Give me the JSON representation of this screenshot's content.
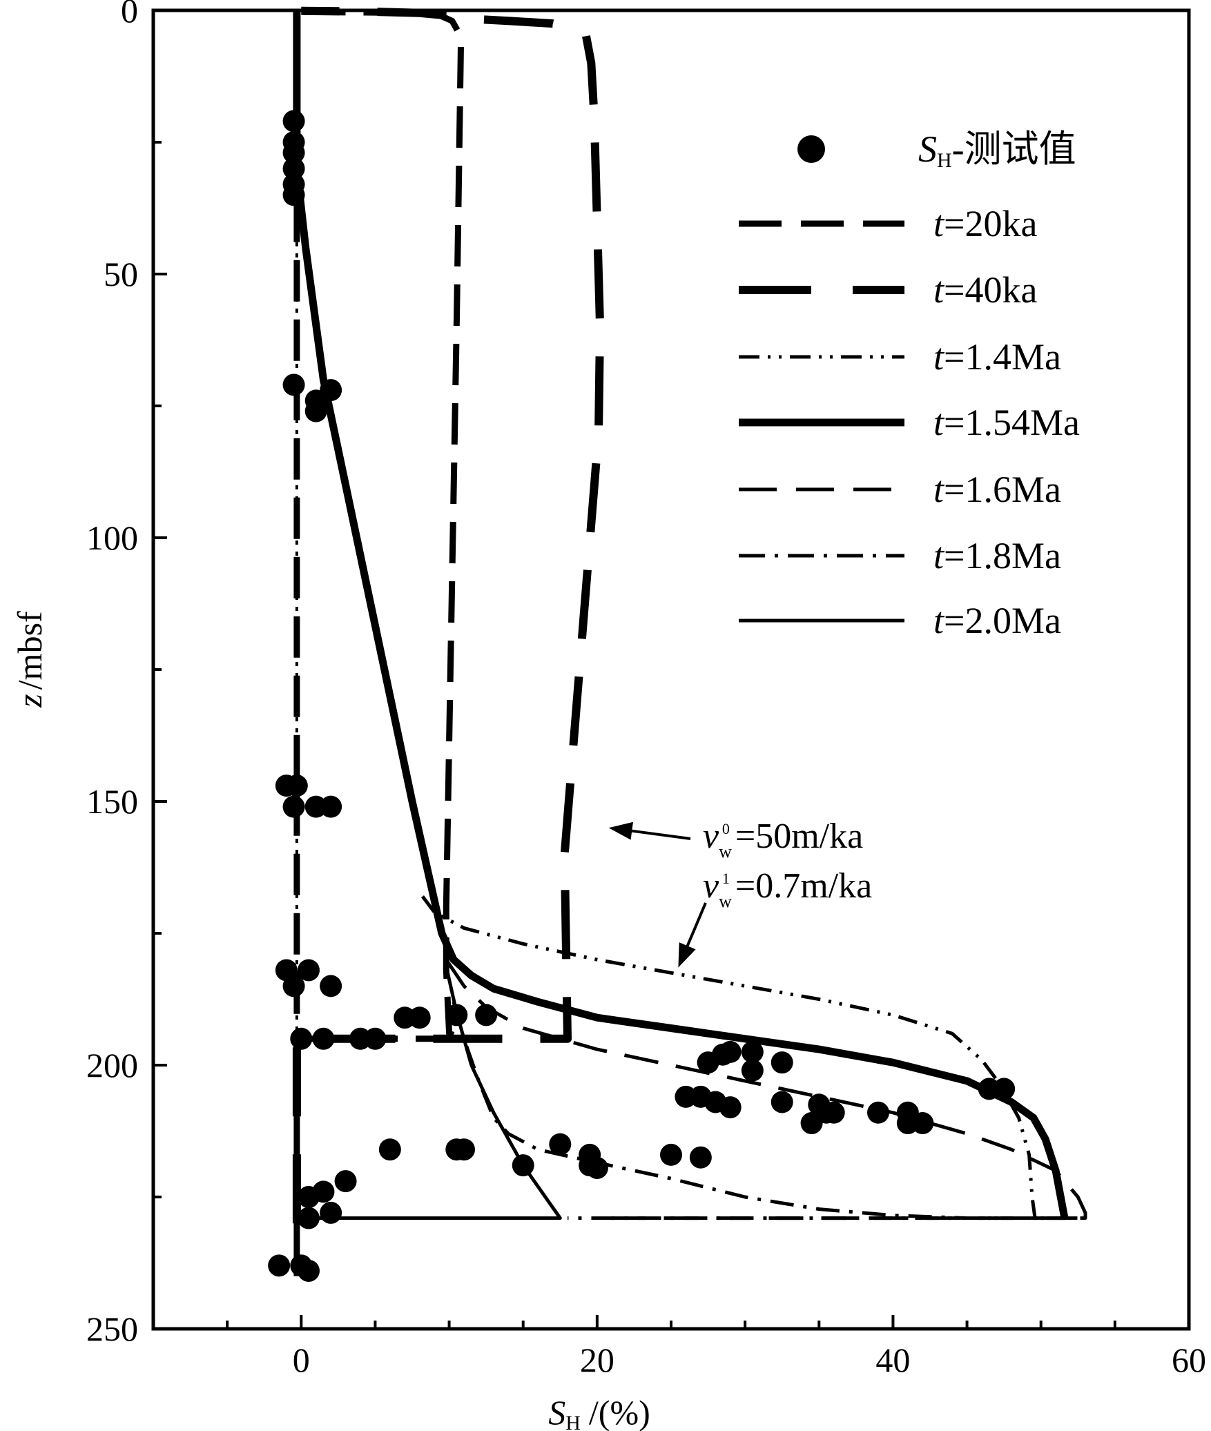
{
  "chart_data": {
    "type": "line",
    "orientation": "depth-profile",
    "xlabel": {
      "symbol": "S",
      "subscript": "H",
      "unit": "/(%)"
    },
    "ylabel": {
      "symbol": "z",
      "unit": "/mbsf"
    },
    "xlim": [
      -10,
      60
    ],
    "ylim": [
      0,
      250
    ],
    "y_inverted": true,
    "x_ticks": [
      0,
      20,
      40,
      60
    ],
    "y_ticks": [
      0,
      50,
      100,
      150,
      200,
      250
    ],
    "legend_position": "top-right",
    "legend": [
      {
        "key": "measured",
        "prefix": "S",
        "sub": "H",
        "suffix": "-测试值",
        "style": "dot"
      },
      {
        "key": "t20ka",
        "prefix": "t",
        "suffix": "=20ka",
        "style": "dash"
      },
      {
        "key": "t40ka",
        "prefix": "t",
        "suffix": "=40ka",
        "style": "longdash"
      },
      {
        "key": "t1_4Ma",
        "prefix": "t",
        "suffix": "=1.4Ma",
        "style": "dashdotdot"
      },
      {
        "key": "t1_54Ma",
        "prefix": "t",
        "suffix": "=1.54Ma",
        "style": "thick"
      },
      {
        "key": "t1_6Ma",
        "prefix": "t",
        "suffix": "=1.6Ma",
        "style": "mediumdash"
      },
      {
        "key": "t1_8Ma",
        "prefix": "t",
        "suffix": "=1.8Ma",
        "style": "dashdot"
      },
      {
        "key": "t2_0Ma",
        "prefix": "t",
        "suffix": "=2.0Ma",
        "style": "solid"
      }
    ],
    "annotation": {
      "line1": {
        "v": "v",
        "sub": "w",
        "sup": "0",
        "text": "=50m/ka"
      },
      "line2": {
        "v": "v",
        "sub": "w",
        "sup": "1",
        "text": "=0.7m/ka"
      },
      "arrow1_target": {
        "x": 20.5,
        "z": 155
      },
      "arrow2_target": {
        "x": 25.3,
        "z": 182
      }
    },
    "series": [
      {
        "name": "t=20ka",
        "style": "dash",
        "points": [
          [
            -0.3,
            240
          ],
          [
            -0.3,
            195
          ],
          [
            9,
            195
          ],
          [
            11,
            195
          ],
          [
            10,
            194
          ],
          [
            9.8,
            182
          ],
          [
            9.8,
            170
          ],
          [
            10.5,
            60
          ],
          [
            10.8,
            5
          ],
          [
            10.2,
            2
          ],
          [
            9,
            0.5
          ],
          [
            -0.3,
            0.3
          ],
          [
            -0.3,
            240
          ]
        ]
      },
      {
        "name": "t=40ka",
        "style": "longdash",
        "points": [
          [
            -0.3,
            230
          ],
          [
            -0.3,
            229
          ],
          [
            -0.3,
            195
          ],
          [
            18,
            195
          ],
          [
            17.8,
            160
          ],
          [
            20.1,
            80
          ],
          [
            20.2,
            60
          ],
          [
            19.8,
            20
          ],
          [
            19.6,
            10
          ],
          [
            19.2,
            4
          ],
          [
            17,
            2.5
          ],
          [
            14,
            2
          ],
          [
            12,
            1.7
          ],
          [
            10,
            1
          ],
          [
            8,
            0.5
          ],
          [
            4,
            0.2
          ],
          [
            0,
            0.1
          ]
        ]
      },
      {
        "name": "t=1.4Ma",
        "style": "dashdotdot",
        "points": [
          [
            8.2,
            168
          ],
          [
            9,
            171
          ],
          [
            11,
            174
          ],
          [
            15,
            177
          ],
          [
            20,
            180
          ],
          [
            25,
            182.5
          ],
          [
            30,
            185
          ],
          [
            35,
            187.5
          ],
          [
            40,
            190.5
          ],
          [
            44,
            194
          ],
          [
            46,
            199
          ],
          [
            47.2,
            203.5
          ],
          [
            48.5,
            210
          ],
          [
            49.2,
            217
          ],
          [
            49.4,
            225
          ],
          [
            49.6,
            229
          ]
        ]
      },
      {
        "name": "t=1.54Ma",
        "style": "thick",
        "points": [
          [
            -0.3,
            0
          ],
          [
            -0.3,
            30
          ],
          [
            0.3,
            45
          ],
          [
            1.5,
            70
          ],
          [
            3,
            90
          ],
          [
            4.5,
            110
          ],
          [
            6,
            130
          ],
          [
            7.5,
            150
          ],
          [
            8.7,
            165
          ],
          [
            9.5,
            175
          ],
          [
            10.3,
            180
          ],
          [
            11.5,
            183
          ],
          [
            13,
            185.5
          ],
          [
            16,
            188
          ],
          [
            20,
            191
          ],
          [
            25,
            193
          ],
          [
            30,
            195
          ],
          [
            35,
            197
          ],
          [
            40,
            199.5
          ],
          [
            45,
            203
          ],
          [
            48,
            207
          ],
          [
            49.5,
            210
          ],
          [
            50.3,
            214
          ],
          [
            51,
            220
          ],
          [
            51.6,
            229
          ]
        ]
      },
      {
        "name": "t=1.6Ma",
        "style": "mediumdash",
        "points": [
          [
            9.8,
            180
          ],
          [
            11,
            185
          ],
          [
            12.5,
            189
          ],
          [
            15,
            193
          ],
          [
            20,
            197
          ],
          [
            25,
            200
          ],
          [
            30,
            203
          ],
          [
            35,
            206
          ],
          [
            40,
            209
          ],
          [
            45,
            213
          ],
          [
            48,
            216
          ],
          [
            51,
            220
          ],
          [
            52.5,
            225
          ],
          [
            53,
            228
          ],
          [
            53,
            229
          ],
          [
            20,
            229
          ]
        ]
      },
      {
        "name": "t=1.8Ma",
        "style": "dashdot",
        "points": [
          [
            10.3,
            188
          ],
          [
            11,
            195
          ],
          [
            12,
            203
          ],
          [
            13,
            210
          ],
          [
            14,
            213
          ],
          [
            16,
            216
          ],
          [
            20,
            218.5
          ],
          [
            25,
            221.5
          ],
          [
            30,
            225
          ],
          [
            35,
            227.3
          ],
          [
            40,
            228.5
          ],
          [
            45,
            229
          ],
          [
            53,
            229
          ],
          [
            18,
            229
          ]
        ]
      },
      {
        "name": "t=2.0Ma",
        "style": "solid",
        "points": [
          [
            9.7,
            180
          ],
          [
            10.5,
            190
          ],
          [
            11.5,
            200
          ],
          [
            13,
            209
          ],
          [
            15,
            219
          ],
          [
            17.5,
            229
          ],
          [
            -0.3,
            229
          ]
        ]
      },
      {
        "name": "initial",
        "style": "dotted",
        "points": [
          [
            -0.3,
            0
          ],
          [
            -0.3,
            229
          ]
        ]
      }
    ],
    "measured_points": [
      [
        -0.5,
        21
      ],
      [
        -0.5,
        25
      ],
      [
        -0.5,
        27
      ],
      [
        -0.5,
        30
      ],
      [
        -0.5,
        33
      ],
      [
        -0.5,
        35
      ],
      [
        -0.5,
        71
      ],
      [
        2,
        72
      ],
      [
        1,
        74
      ],
      [
        1,
        76
      ],
      [
        -1,
        147
      ],
      [
        -0.3,
        147
      ],
      [
        -0.5,
        151
      ],
      [
        1,
        151
      ],
      [
        2,
        151
      ],
      [
        -1,
        182
      ],
      [
        0.5,
        182
      ],
      [
        -0.5,
        185
      ],
      [
        2,
        185
      ],
      [
        0,
        195
      ],
      [
        1.5,
        195
      ],
      [
        4,
        195
      ],
      [
        5,
        195
      ],
      [
        7,
        191
      ],
      [
        8,
        191
      ],
      [
        10.5,
        190.5
      ],
      [
        12.5,
        190.5
      ],
      [
        27.5,
        199.5
      ],
      [
        28.5,
        198
      ],
      [
        29,
        197.5
      ],
      [
        30.5,
        197.5
      ],
      [
        32.5,
        199.5
      ],
      [
        30.5,
        201
      ],
      [
        26,
        206
      ],
      [
        27,
        206
      ],
      [
        28,
        207
      ],
      [
        29,
        208
      ],
      [
        32.5,
        207
      ],
      [
        35,
        207.5
      ],
      [
        35.5,
        209
      ],
      [
        36,
        209
      ],
      [
        34.5,
        211
      ],
      [
        39,
        209
      ],
      [
        41,
        209
      ],
      [
        41,
        211
      ],
      [
        42,
        211
      ],
      [
        46.5,
        204.5
      ],
      [
        47.5,
        204.5
      ],
      [
        6,
        216
      ],
      [
        10.5,
        216
      ],
      [
        11,
        216
      ],
      [
        15,
        219
      ],
      [
        17.5,
        215
      ],
      [
        19.5,
        217
      ],
      [
        19.5,
        219
      ],
      [
        20,
        219.5
      ],
      [
        25,
        217
      ],
      [
        27,
        217.5
      ],
      [
        3,
        222
      ],
      [
        1.5,
        224
      ],
      [
        0.5,
        225
      ],
      [
        2,
        228
      ],
      [
        0.5,
        229
      ],
      [
        -1.5,
        238
      ],
      [
        0,
        238
      ],
      [
        0.5,
        239
      ]
    ]
  }
}
